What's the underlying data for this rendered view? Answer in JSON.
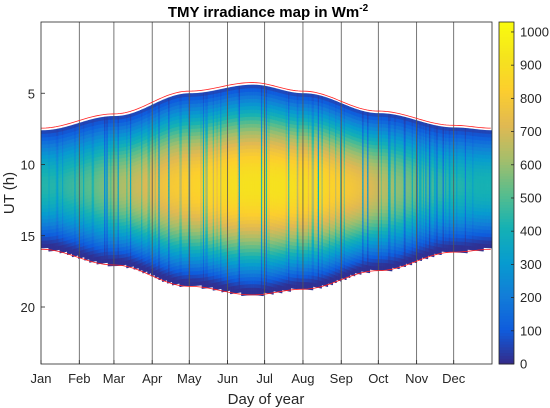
{
  "chart_data": {
    "type": "heatmap",
    "title": "TMY irradiance map in Wm",
    "title_superscript": "-2",
    "xlabel": "Day of year",
    "ylabel": "UT (h)",
    "x_ticks": [
      "Jan",
      "Feb",
      "Mar",
      "Apr",
      "May",
      "Jun",
      "Jul",
      "Aug",
      "Sep",
      "Oct",
      "Nov",
      "Dec"
    ],
    "x_tick_days": [
      1,
      32,
      60,
      91,
      121,
      152,
      182,
      213,
      244,
      274,
      305,
      335
    ],
    "xlim": [
      1,
      366
    ],
    "y_ticks": [
      "5",
      "10",
      "15",
      "20"
    ],
    "y_tick_values": [
      5,
      10,
      15,
      20
    ],
    "ylim": [
      0,
      24
    ],
    "y_reversed": true,
    "colorbar": {
      "ticks": [
        "0",
        "100",
        "200",
        "300",
        "400",
        "500",
        "600",
        "700",
        "800",
        "900",
        "1000"
      ],
      "tick_values": [
        0,
        100,
        200,
        300,
        400,
        500,
        600,
        700,
        800,
        900,
        1000
      ],
      "range": [
        0,
        1030
      ],
      "colormap": "parula"
    },
    "sunrise_envelope": [
      {
        "day": 1,
        "ut": 7.6
      },
      {
        "day": 60,
        "ut": 6.6
      },
      {
        "day": 121,
        "ut": 5.0
      },
      {
        "day": 172,
        "ut": 4.4
      },
      {
        "day": 213,
        "ut": 5.0
      },
      {
        "day": 274,
        "ut": 6.4
      },
      {
        "day": 335,
        "ut": 7.4
      },
      {
        "day": 366,
        "ut": 7.6
      }
    ],
    "sunset_envelope": [
      {
        "day": 1,
        "ut": 15.8
      },
      {
        "day": 60,
        "ut": 16.9
      },
      {
        "day": 121,
        "ut": 18.4
      },
      {
        "day": 172,
        "ut": 19.0
      },
      {
        "day": 213,
        "ut": 18.6
      },
      {
        "day": 274,
        "ut": 17.3
      },
      {
        "day": 335,
        "ut": 16.0
      },
      {
        "day": 366,
        "ut": 15.8
      }
    ],
    "envelope_color": "#ff2020",
    "month_line_color": "#555555",
    "peak_irradiance_by_month": [
      {
        "month": "Jan",
        "w_m2": 420
      },
      {
        "month": "Feb",
        "w_m2": 520
      },
      {
        "month": "Mar",
        "w_m2": 650
      },
      {
        "month": "Apr",
        "w_m2": 780
      },
      {
        "month": "May",
        "w_m2": 850
      },
      {
        "month": "Jun",
        "w_m2": 900
      },
      {
        "month": "Jul",
        "w_m2": 900
      },
      {
        "month": "Aug",
        "w_m2": 860
      },
      {
        "month": "Sep",
        "w_m2": 750
      },
      {
        "month": "Oct",
        "w_m2": 580
      },
      {
        "month": "Nov",
        "w_m2": 460
      },
      {
        "month": "Dec",
        "w_m2": 400
      }
    ]
  }
}
